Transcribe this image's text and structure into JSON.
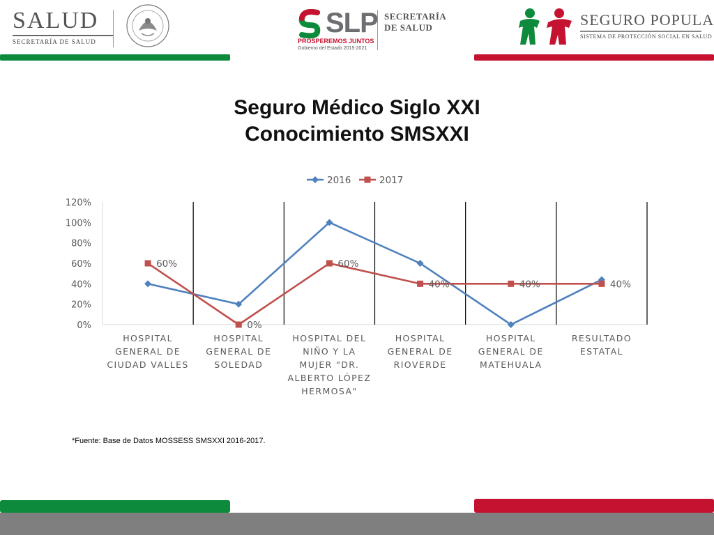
{
  "header": {
    "salud_big": "SALUD",
    "salud_small": "SECRETARÍA DE SALUD",
    "slp_word": "SLP",
    "slp_tag1": "PROSPEREMOS JUNTOS",
    "slp_tag2": "Gobierno del Estado 2015-2021",
    "secretaria_line1": "SECRETARÍA",
    "secretaria_line2": "DE SALUD",
    "seguro_name": "SEGURO POPULAR",
    "seguro_sub": "SISTEMA DE PROTECCIÓN SOCIAL EN SALUD"
  },
  "colors": {
    "green": "#0d8a3c",
    "red": "#c41230",
    "series_2016": "#4f81bd",
    "series_2017": "#c0504d"
  },
  "title_line1": "Seguro Médico Siglo XXI",
  "title_line2": "Conocimiento SMSXXI",
  "source": "*Fuente: Base de Datos MOSSESS SMSXXI 2016-2017.",
  "chart_data": {
    "type": "line",
    "categories": [
      [
        "HOSPITAL",
        "GENERAL DE",
        "CIUDAD VALLES"
      ],
      [
        "HOSPITAL",
        "GENERAL DE",
        "SOLEDAD"
      ],
      [
        "HOSPITAL DEL",
        "NIÑO Y LA",
        "MUJER \"DR.",
        "ALBERTO LÓPEZ",
        "HERMOSA\""
      ],
      [
        "HOSPITAL",
        "GENERAL DE",
        "RIOVERDE"
      ],
      [
        "HOSPITAL",
        "GENERAL DE",
        "MATEHUALA"
      ],
      [
        "RESULTADO",
        "ESTATAL"
      ]
    ],
    "series": [
      {
        "name": "2016",
        "values": [
          40,
          20,
          100,
          60,
          0,
          44
        ],
        "marker": "diamond",
        "labels": [
          "",
          "",
          "",
          "",
          "",
          ""
        ]
      },
      {
        "name": "2017",
        "values": [
          60,
          0,
          60,
          40,
          40,
          40
        ],
        "marker": "square",
        "labels": [
          "60%",
          "0%",
          "60%",
          "40%",
          "40%",
          "40%"
        ]
      }
    ],
    "y_ticks": [
      "0%",
      "20%",
      "40%",
      "60%",
      "80%",
      "100%",
      "120%"
    ],
    "ylim": [
      0,
      120
    ],
    "legend": "top-center",
    "grid": false,
    "vertical_separators": true
  }
}
